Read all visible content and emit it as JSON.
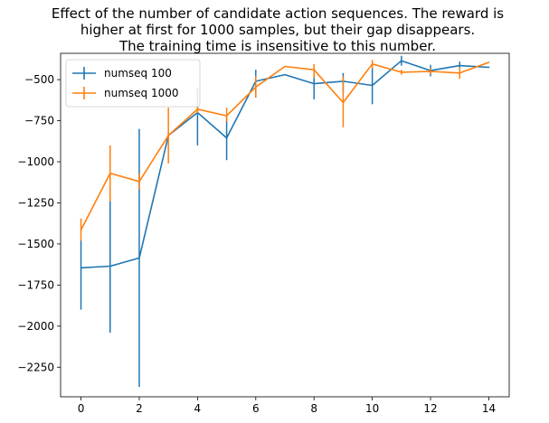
{
  "chart_data": {
    "type": "line",
    "title_lines": [
      "Effect of the number of candidate action sequences. The reward is",
      "higher at first for 1000 samples, but their gap disappears.",
      "The training time is insensitive to this number."
    ],
    "xlabel": "",
    "ylabel": "",
    "x": [
      0,
      1,
      2,
      3,
      4,
      5,
      6,
      7,
      8,
      9,
      10,
      11,
      12,
      13,
      14
    ],
    "xlim": [
      -0.7,
      14.7
    ],
    "ylim": [
      -2430,
      -340
    ],
    "xticks": [
      0,
      2,
      4,
      6,
      8,
      10,
      12,
      14
    ],
    "xtick_labels": [
      "0",
      "2",
      "4",
      "6",
      "8",
      "10",
      "12",
      "14"
    ],
    "yticks": [
      -500,
      -750,
      -1000,
      -1250,
      -1500,
      -1750,
      -2000,
      -2250
    ],
    "ytick_labels": [
      "−500",
      "−750",
      "−1000",
      "−1250",
      "−1500",
      "−1750",
      "−2000",
      "−2250"
    ],
    "grid": false,
    "legend_position": "top-left",
    "series": [
      {
        "name": "numseq 100",
        "color": "#1f77b4",
        "values": [
          -1645,
          -1635,
          -1585,
          -840,
          -700,
          -855,
          -510,
          -470,
          -525,
          -510,
          -535,
          -385,
          -445,
          -415,
          -425
        ],
        "err_low": [
          -1900,
          -2040,
          -2370,
          -855,
          -900,
          -990,
          -610,
          -470,
          -620,
          -575,
          -650,
          -415,
          -480,
          -440,
          -425
        ],
        "err_high": [
          -1475,
          -1235,
          -800,
          -820,
          -550,
          -720,
          -440,
          -470,
          -465,
          -460,
          -430,
          -355,
          -410,
          -390,
          -425
        ]
      },
      {
        "name": "numseq 1000",
        "color": "#ff7f0e",
        "values": [
          -1415,
          -1070,
          -1120,
          -840,
          -680,
          -720,
          -545,
          -420,
          -440,
          -640,
          -405,
          -455,
          -450,
          -460,
          -395
        ],
        "err_low": [
          -1480,
          -1240,
          -1170,
          -1010,
          -705,
          -755,
          -610,
          -420,
          -490,
          -790,
          -430,
          -470,
          -470,
          -495,
          -395
        ],
        "err_high": [
          -1345,
          -900,
          -1070,
          -670,
          -655,
          -670,
          -480,
          -420,
          -405,
          -480,
          -380,
          -440,
          -430,
          -425,
          -395
        ]
      }
    ]
  }
}
